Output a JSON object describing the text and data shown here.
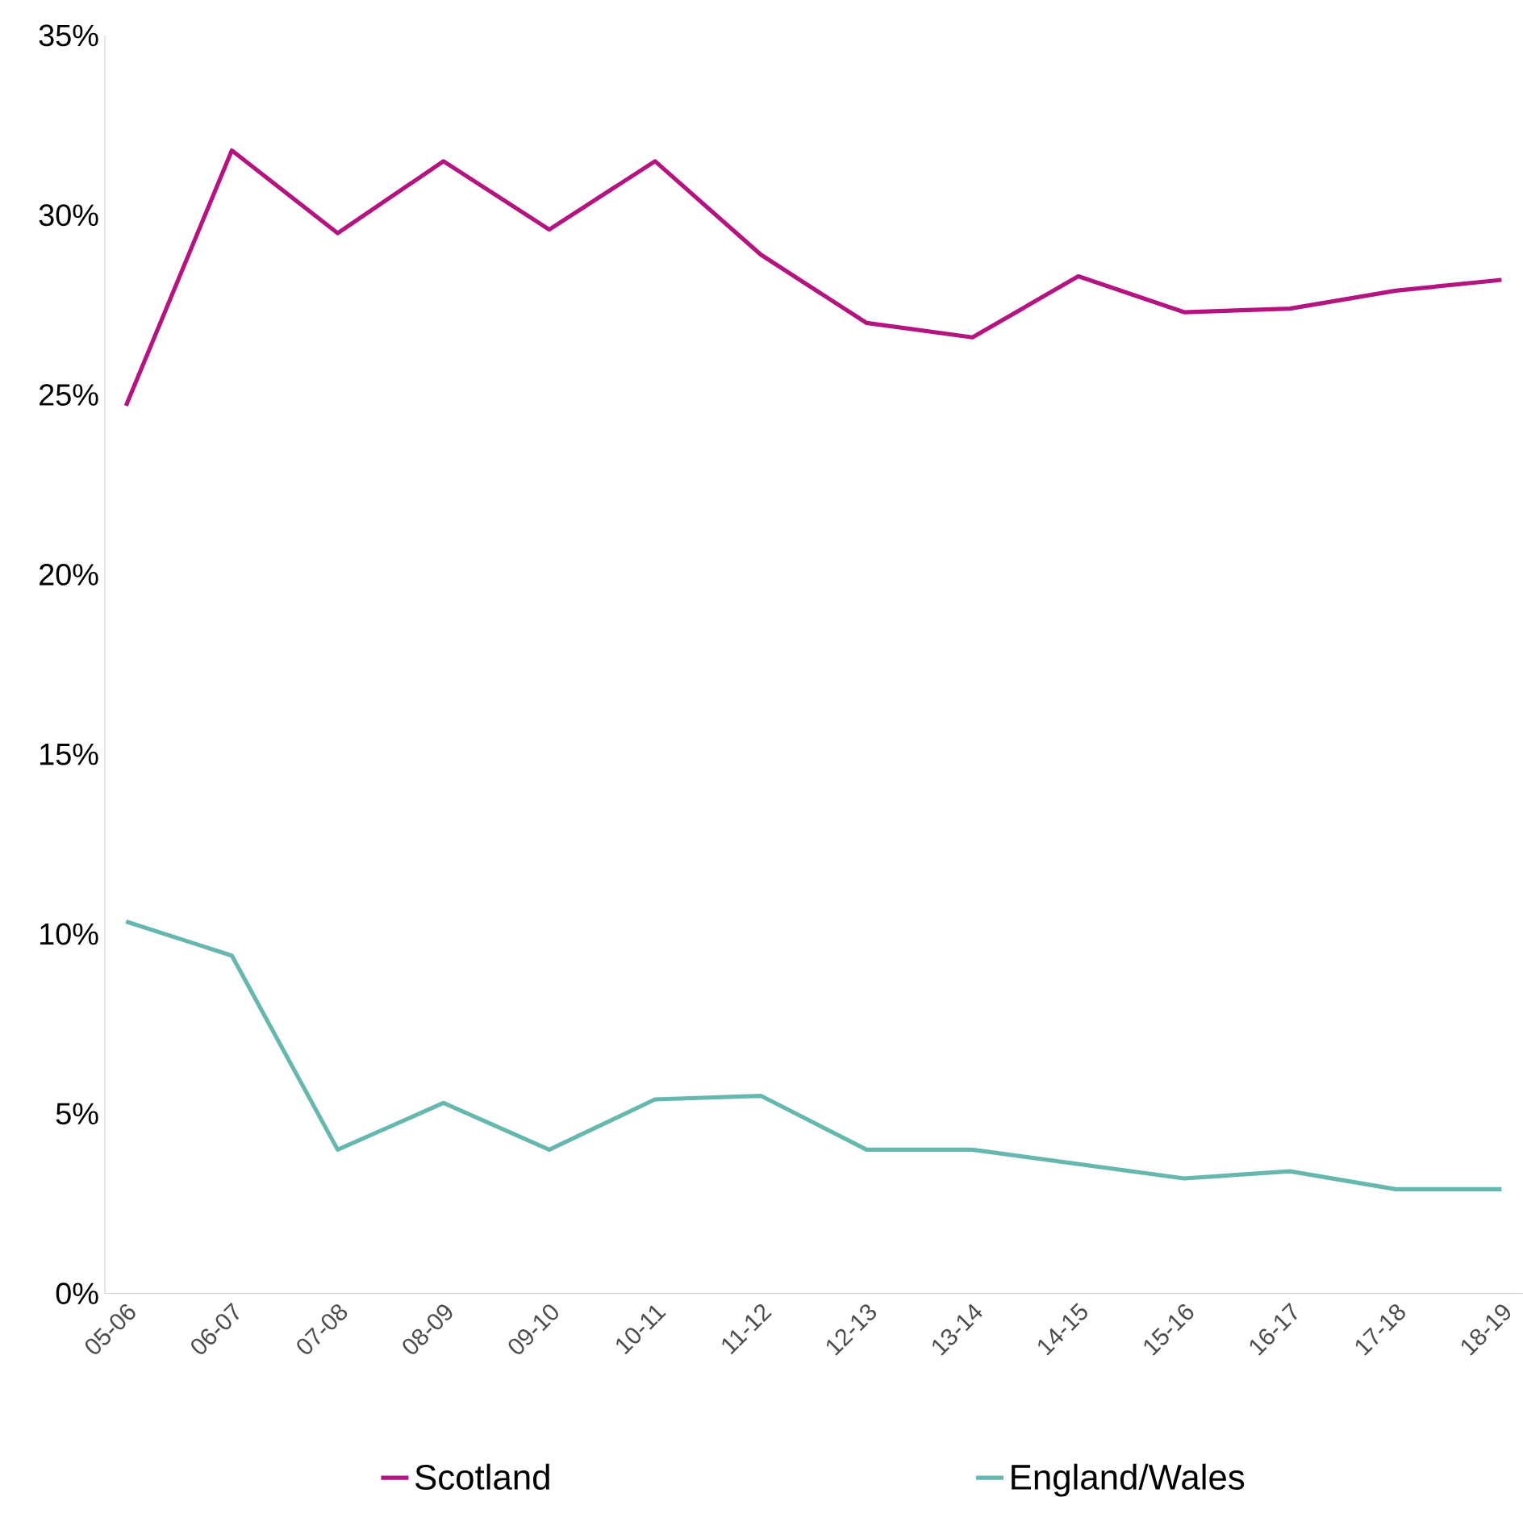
{
  "chart_data": {
    "type": "line",
    "categories": [
      "05-06",
      "06-07",
      "07-08",
      "08-09",
      "09-10",
      "10-11",
      "11-12",
      "12-13",
      "13-14",
      "14-15",
      "15-16",
      "16-17",
      "17-18",
      "18-19"
    ],
    "series": [
      {
        "name": "Scotland",
        "color": "#b5137f",
        "values": [
          24.7,
          31.8,
          29.5,
          31.5,
          29.6,
          31.5,
          28.9,
          27.0,
          26.6,
          28.3,
          27.3,
          27.4,
          27.9,
          28.2
        ]
      },
      {
        "name": "England/Wales",
        "color": "#66b8ae",
        "values": [
          10.35,
          9.4,
          4.0,
          5.3,
          4.0,
          5.4,
          5.5,
          4.0,
          4.0,
          3.6,
          3.2,
          3.4,
          2.9,
          2.9
        ]
      }
    ],
    "ylim": [
      0,
      35
    ],
    "yticks": [
      {
        "value": 0,
        "label": "0%"
      },
      {
        "value": 5,
        "label": "5%"
      },
      {
        "value": 10,
        "label": "10%"
      },
      {
        "value": 15,
        "label": "15%"
      },
      {
        "value": 20,
        "label": "20%"
      },
      {
        "value": 25,
        "label": "25%"
      },
      {
        "value": 30,
        "label": "30%"
      },
      {
        "value": 35,
        "label": "35%"
      }
    ],
    "legend": "bottom",
    "grid": false,
    "marker": "none",
    "line_style": "solid"
  }
}
